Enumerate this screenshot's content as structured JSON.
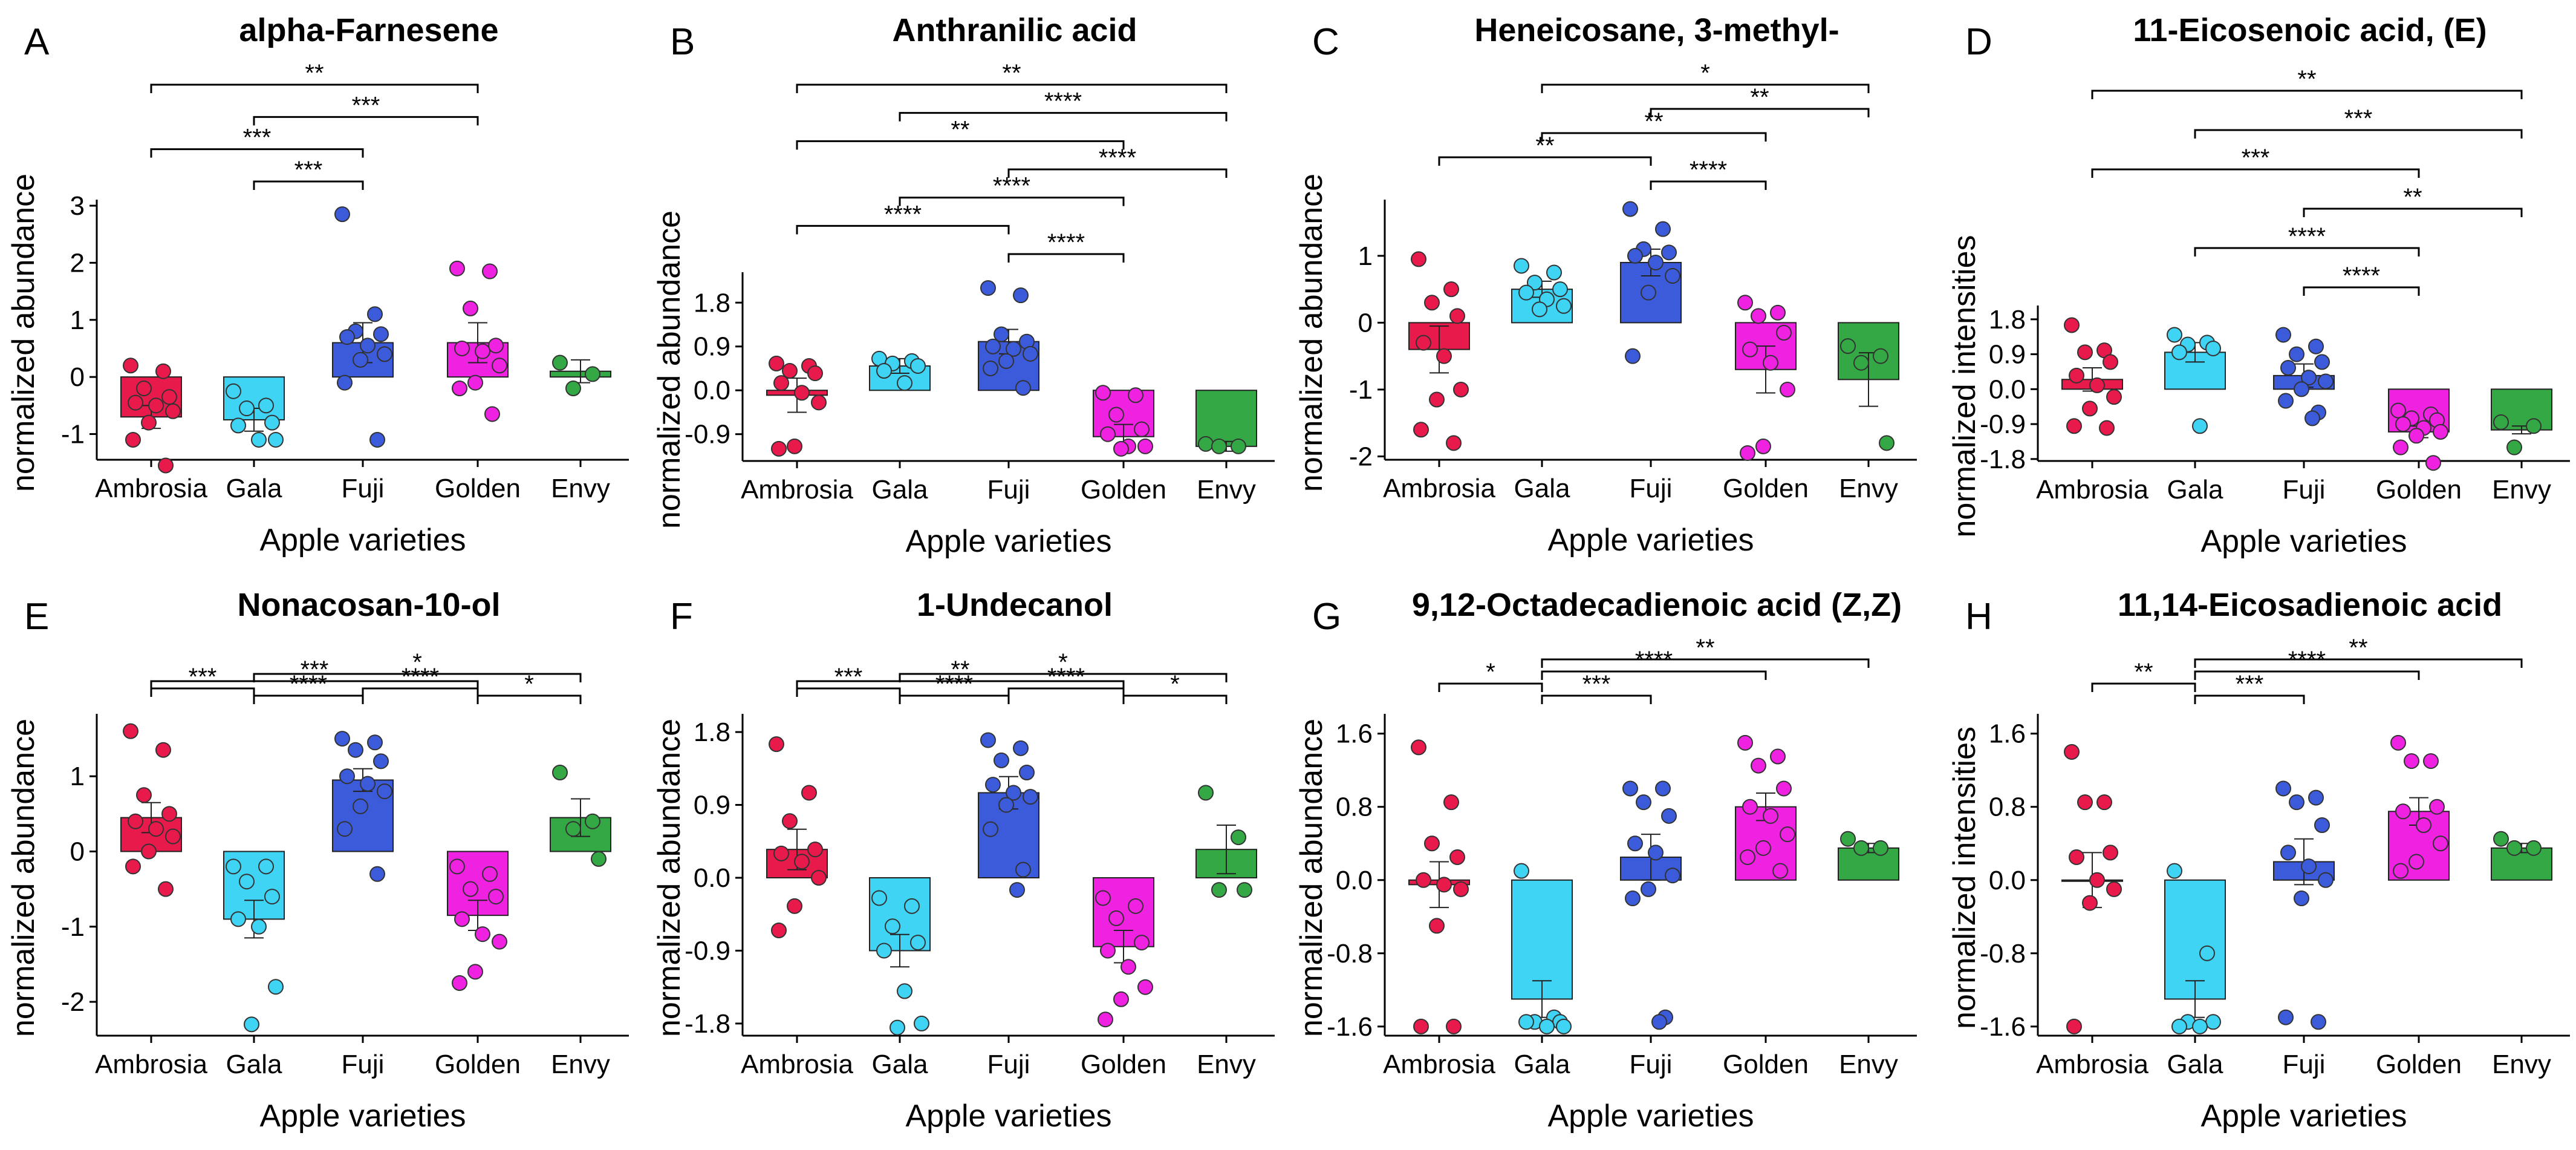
{
  "x_label": "Apple varieties",
  "categories": [
    "Ambrosia",
    "Gala",
    "Fuji",
    "Golden",
    "Envy"
  ],
  "colors": [
    "#e8194b",
    "#3fd4f4",
    "#3b5bdb",
    "#ee22e0",
    "#33a844"
  ],
  "chart_data": [
    {
      "panel": "A",
      "type": "bar",
      "title": "alpha-Farnesene",
      "xlabel": "Apple varieties",
      "ylabel": "normalized abundance",
      "ylim": [
        -1.45,
        3.0
      ],
      "yticks": [
        -1,
        0,
        1,
        2,
        3
      ],
      "ytick_labels": [
        "-1",
        "0",
        "1",
        "2",
        "3"
      ],
      "categories": [
        "Ambrosia",
        "Gala",
        "Fuji",
        "Golden",
        "Envy"
      ],
      "values": [
        -0.7,
        -0.75,
        0.6,
        0.6,
        0.1
      ],
      "errors": [
        0.2,
        0.2,
        0.35,
        0.35,
        0.2
      ],
      "points": [
        [
          0.2,
          0.1,
          -0.2,
          -0.35,
          -0.45,
          -0.5,
          -0.6,
          -0.8,
          -1.1,
          -1.55
        ],
        [
          -0.25,
          -0.5,
          -0.55,
          -0.8,
          -0.85,
          -1.1,
          -1.1
        ],
        [
          2.85,
          1.1,
          0.8,
          0.75,
          0.7,
          0.55,
          0.4,
          0.3,
          -0.1,
          -1.1
        ],
        [
          1.9,
          1.85,
          1.2,
          0.55,
          0.5,
          0.45,
          0.2,
          -0.1,
          -0.2,
          -0.65
        ],
        [
          0.25,
          0.05,
          -0.2
        ]
      ],
      "significance": [
        {
          "groups": [
            "Ambrosia",
            "Golden"
          ],
          "label": "**"
        },
        {
          "groups": [
            "Gala",
            "Golden"
          ],
          "label": "***"
        },
        {
          "groups": [
            "Ambrosia",
            "Fuji"
          ],
          "label": "***"
        },
        {
          "groups": [
            "Gala",
            "Fuji"
          ],
          "label": "***"
        }
      ]
    },
    {
      "panel": "B",
      "type": "bar",
      "title": "Anthranilic acid",
      "xlabel": "Apple varieties",
      "ylabel": "normalized abundance",
      "ylim": [
        -1.45,
        2.3
      ],
      "yticks": [
        -0.9,
        0.0,
        0.9,
        1.8
      ],
      "ytick_labels": [
        "-0.9",
        "0.0",
        "0.9",
        "1.8"
      ],
      "categories": [
        "Ambrosia",
        "Gala",
        "Fuji",
        "Golden",
        "Envy"
      ],
      "values": [
        -0.1,
        0.5,
        1.0,
        -0.95,
        -1.15
      ],
      "errors": [
        0.35,
        0.15,
        0.25,
        0.25,
        0.1
      ],
      "points": [
        [
          0.55,
          0.5,
          0.4,
          0.35,
          0.15,
          -0.05,
          -0.25,
          -1.15,
          -1.2
        ],
        [
          0.65,
          0.6,
          0.55,
          0.5,
          0.4,
          0.15
        ],
        [
          2.1,
          1.95,
          1.15,
          1.0,
          0.9,
          0.85,
          0.75,
          0.6,
          0.45,
          0.05
        ],
        [
          -0.05,
          -0.1,
          -0.5,
          -0.8,
          -0.9,
          -1.15,
          -1.15,
          -1.2
        ],
        [
          -1.1,
          -1.15,
          -1.15
        ]
      ],
      "significance": [
        {
          "groups": [
            "Ambrosia",
            "Envy"
          ],
          "label": "**"
        },
        {
          "groups": [
            "Gala",
            "Envy"
          ],
          "label": "****"
        },
        {
          "groups": [
            "Ambrosia",
            "Golden"
          ],
          "label": "**"
        },
        {
          "groups": [
            "Fuji",
            "Envy"
          ],
          "label": "****"
        },
        {
          "groups": [
            "Gala",
            "Golden"
          ],
          "label": "****"
        },
        {
          "groups": [
            "Ambrosia",
            "Fuji"
          ],
          "label": "****"
        },
        {
          "groups": [
            "Fuji",
            "Golden"
          ],
          "label": "****"
        }
      ]
    },
    {
      "panel": "C",
      "type": "bar",
      "title": "Heneicosane, 3-methyl-",
      "xlabel": "Apple varieties",
      "ylabel": "normalized abundance",
      "ylim": [
        -2.05,
        1.75
      ],
      "yticks": [
        -2,
        -1,
        0,
        1
      ],
      "ytick_labels": [
        "-2",
        "-1",
        "0",
        "1"
      ],
      "categories": [
        "Ambrosia",
        "Gala",
        "Fuji",
        "Golden",
        "Envy"
      ],
      "values": [
        -0.4,
        0.5,
        0.9,
        -0.7,
        -0.85
      ],
      "errors": [
        0.35,
        0.12,
        0.2,
        0.35,
        0.4
      ],
      "points": [
        [
          0.95,
          0.5,
          0.3,
          0.1,
          -0.3,
          -0.5,
          -1.0,
          -1.15,
          -1.6,
          -1.8
        ],
        [
          0.85,
          0.75,
          0.6,
          0.5,
          0.45,
          0.35,
          0.25,
          0.2
        ],
        [
          1.7,
          1.4,
          1.1,
          1.05,
          1.0,
          0.9,
          0.7,
          0.45,
          -0.5
        ],
        [
          0.3,
          0.15,
          0.1,
          -0.15,
          -0.4,
          -0.6,
          -1.0,
          -1.85,
          -1.95
        ],
        [
          -0.35,
          -0.5,
          -0.6,
          -1.8
        ]
      ],
      "significance": [
        {
          "groups": [
            "Gala",
            "Envy"
          ],
          "label": "*"
        },
        {
          "groups": [
            "Fuji",
            "Envy"
          ],
          "label": "**"
        },
        {
          "groups": [
            "Gala",
            "Golden"
          ],
          "label": "**"
        },
        {
          "groups": [
            "Ambrosia",
            "Fuji"
          ],
          "label": "**"
        },
        {
          "groups": [
            "Fuji",
            "Golden"
          ],
          "label": "****"
        }
      ]
    },
    {
      "panel": "D",
      "type": "bar",
      "title": "11-Eicosenoic acid, (E)",
      "xlabel": "Apple varieties",
      "ylabel": "normalized intensities",
      "ylim": [
        -1.85,
        2.0
      ],
      "yticks": [
        -1.8,
        -0.9,
        0.0,
        0.9,
        1.8
      ],
      "ytick_labels": [
        "-1.8",
        "-0.9",
        "0.0",
        "0.9",
        "1.8"
      ],
      "categories": [
        "Ambrosia",
        "Gala",
        "Fuji",
        "Golden",
        "Envy"
      ],
      "values": [
        0.25,
        0.95,
        0.35,
        -1.1,
        -1.05
      ],
      "errors": [
        0.3,
        0.25,
        0.3,
        0.15,
        0.1
      ],
      "points": [
        [
          1.65,
          1.0,
          0.95,
          0.7,
          0.35,
          0.1,
          -0.2,
          -0.5,
          -0.95,
          -1.0
        ],
        [
          1.4,
          1.2,
          1.15,
          1.05,
          0.95,
          -0.95
        ],
        [
          1.4,
          1.1,
          0.9,
          0.7,
          0.55,
          0.3,
          0.2,
          0.0,
          -0.3,
          -0.6,
          -0.75
        ],
        [
          -0.55,
          -0.65,
          -0.75,
          -0.8,
          -0.9,
          -1.0,
          -1.1,
          -1.2,
          -1.5,
          -1.9
        ],
        [
          -0.85,
          -0.95,
          -1.5
        ]
      ],
      "significance": [
        {
          "groups": [
            "Ambrosia",
            "Envy"
          ],
          "label": "**"
        },
        {
          "groups": [
            "Gala",
            "Envy"
          ],
          "label": "***"
        },
        {
          "groups": [
            "Ambrosia",
            "Golden"
          ],
          "label": "***"
        },
        {
          "groups": [
            "Fuji",
            "Envy"
          ],
          "label": "**"
        },
        {
          "groups": [
            "Gala",
            "Golden"
          ],
          "label": "****"
        },
        {
          "groups": [
            "Fuji",
            "Golden"
          ],
          "label": "****"
        }
      ]
    },
    {
      "panel": "E",
      "type": "bar",
      "title": "Nonacosan-10-ol",
      "xlabel": "Apple varieties",
      "ylabel": "normalized abundance",
      "ylim": [
        -2.45,
        1.75
      ],
      "yticks": [
        -2,
        -1,
        0,
        1
      ],
      "ytick_labels": [
        "-2",
        "-1",
        "0",
        "1"
      ],
      "categories": [
        "Ambrosia",
        "Gala",
        "Fuji",
        "Golden",
        "Envy"
      ],
      "values": [
        0.45,
        -0.9,
        0.95,
        -0.85,
        0.45
      ],
      "errors": [
        0.2,
        0.25,
        0.15,
        0.2,
        0.25
      ],
      "points": [
        [
          1.6,
          1.35,
          0.75,
          0.5,
          0.4,
          0.3,
          0.2,
          0.0,
          -0.2,
          -0.5
        ],
        [
          -0.2,
          -0.2,
          -0.4,
          -0.6,
          -0.9,
          -1.0,
          -1.8,
          -2.3
        ],
        [
          1.5,
          1.45,
          1.35,
          1.2,
          1.0,
          0.9,
          0.8,
          0.6,
          0.3,
          -0.3
        ],
        [
          -0.2,
          -0.3,
          -0.5,
          -0.6,
          -0.9,
          -1.1,
          -1.2,
          -1.6,
          -1.75
        ],
        [
          1.05,
          0.4,
          0.3,
          -0.1
        ]
      ],
      "significance": [
        {
          "groups": [
            "Gala",
            "Envy"
          ],
          "label": "*"
        },
        {
          "groups": [
            "Ambrosia",
            "Golden"
          ],
          "label": "***"
        },
        {
          "groups": [
            "Ambrosia",
            "Gala"
          ],
          "label": "***"
        },
        {
          "groups": [
            "Gala",
            "Fuji"
          ],
          "label": "****"
        },
        {
          "groups": [
            "Fuji",
            "Golden"
          ],
          "label": "****"
        },
        {
          "groups": [
            "Golden",
            "Envy"
          ],
          "label": "*"
        }
      ]
    },
    {
      "panel": "F",
      "type": "bar",
      "title": "1-Undecanol",
      "xlabel": "Apple varieties",
      "ylabel": "normalized abundance",
      "ylim": [
        -1.95,
        1.95
      ],
      "yticks": [
        -1.8,
        -0.9,
        0.0,
        0.9,
        1.8
      ],
      "ytick_labels": [
        "-1.8",
        "-0.9",
        "0.0",
        "0.9",
        "1.8"
      ],
      "categories": [
        "Ambrosia",
        "Gala",
        "Fuji",
        "Golden",
        "Envy"
      ],
      "values": [
        0.35,
        -0.9,
        1.05,
        -0.85,
        0.35
      ],
      "errors": [
        0.25,
        0.2,
        0.2,
        0.2,
        0.3
      ],
      "points": [
        [
          1.65,
          1.05,
          0.7,
          0.35,
          0.3,
          0.2,
          0.0,
          -0.35,
          -0.65
        ],
        [
          -0.25,
          -0.35,
          -0.6,
          -0.8,
          -0.9,
          -1.4,
          -1.8,
          -1.85
        ],
        [
          1.7,
          1.6,
          1.45,
          1.3,
          1.15,
          1.05,
          1.0,
          0.9,
          0.6,
          0.1,
          -0.15
        ],
        [
          -0.25,
          -0.35,
          -0.5,
          -0.8,
          -0.9,
          -1.1,
          -1.35,
          -1.5,
          -1.75
        ],
        [
          1.05,
          0.5,
          -0.15,
          -0.15
        ]
      ],
      "significance": [
        {
          "groups": [
            "Gala",
            "Envy"
          ],
          "label": "*"
        },
        {
          "groups": [
            "Ambrosia",
            "Golden"
          ],
          "label": "**"
        },
        {
          "groups": [
            "Ambrosia",
            "Gala"
          ],
          "label": "***"
        },
        {
          "groups": [
            "Gala",
            "Fuji"
          ],
          "label": "****"
        },
        {
          "groups": [
            "Fuji",
            "Golden"
          ],
          "label": "****"
        },
        {
          "groups": [
            "Golden",
            "Envy"
          ],
          "label": "*"
        }
      ]
    },
    {
      "panel": "G",
      "type": "bar",
      "title": "9,12-Octadecadienoic acid (Z,Z)",
      "xlabel": "Apple varieties",
      "ylabel": "normalized abundance",
      "ylim": [
        -1.7,
        1.75
      ],
      "yticks": [
        -1.6,
        -0.8,
        0.0,
        0.8,
        1.6
      ],
      "ytick_labels": [
        "-1.6",
        "-0.8",
        "0.0",
        "0.8",
        "1.6"
      ],
      "categories": [
        "Ambrosia",
        "Gala",
        "Fuji",
        "Golden",
        "Envy"
      ],
      "values": [
        -0.05,
        -1.3,
        0.25,
        0.8,
        0.35
      ],
      "errors": [
        0.25,
        0.2,
        0.25,
        0.15,
        0.05
      ],
      "points": [
        [
          1.45,
          0.85,
          0.4,
          0.25,
          0.0,
          -0.05,
          -0.1,
          -0.5,
          -1.6,
          -1.6
        ],
        [
          0.1,
          -1.5,
          -1.55,
          -1.55,
          -1.55,
          -1.6,
          -1.6
        ],
        [
          1.0,
          1.0,
          0.85,
          0.7,
          0.4,
          0.3,
          0.05,
          -0.1,
          -0.2,
          -1.5,
          -1.55
        ],
        [
          1.5,
          1.35,
          1.25,
          1.0,
          0.8,
          0.7,
          0.5,
          0.35,
          0.25,
          0.1
        ],
        [
          0.45,
          0.35,
          0.35
        ]
      ],
      "significance": [
        {
          "groups": [
            "Gala",
            "Envy"
          ],
          "label": "**"
        },
        {
          "groups": [
            "Gala",
            "Golden"
          ],
          "label": "****"
        },
        {
          "groups": [
            "Ambrosia",
            "Gala"
          ],
          "label": "*"
        },
        {
          "groups": [
            "Gala",
            "Fuji"
          ],
          "label": "***"
        }
      ]
    },
    {
      "panel": "H",
      "type": "bar",
      "title": "11,14-Eicosadienoic acid",
      "xlabel": "Apple varieties",
      "ylabel": "normalized intensities",
      "ylim": [
        -1.7,
        1.75
      ],
      "yticks": [
        -1.6,
        -0.8,
        0.0,
        0.8,
        1.6
      ],
      "ytick_labels": [
        "-1.6",
        "-0.8",
        "0.0",
        "0.8",
        "1.6"
      ],
      "categories": [
        "Ambrosia",
        "Gala",
        "Fuji",
        "Golden",
        "Envy"
      ],
      "values": [
        0.0,
        -1.3,
        0.2,
        0.75,
        0.35
      ],
      "errors": [
        0.3,
        0.2,
        0.25,
        0.15,
        0.05
      ],
      "points": [
        [
          1.4,
          0.85,
          0.85,
          0.3,
          0.25,
          0.0,
          -0.1,
          -0.25,
          -1.6
        ],
        [
          0.1,
          -0.8,
          -1.55,
          -1.55,
          -1.6,
          -1.6
        ],
        [
          1.0,
          0.9,
          0.85,
          0.6,
          0.3,
          0.15,
          0.0,
          -0.2,
          -1.5,
          -1.55
        ],
        [
          1.5,
          1.3,
          1.3,
          0.8,
          0.75,
          0.6,
          0.4,
          0.2,
          0.1
        ],
        [
          0.45,
          0.35,
          0.35
        ]
      ],
      "significance": [
        {
          "groups": [
            "Gala",
            "Envy"
          ],
          "label": "**"
        },
        {
          "groups": [
            "Gala",
            "Golden"
          ],
          "label": "****"
        },
        {
          "groups": [
            "Ambrosia",
            "Gala"
          ],
          "label": "**"
        },
        {
          "groups": [
            "Gala",
            "Fuji"
          ],
          "label": "***"
        }
      ]
    }
  ]
}
